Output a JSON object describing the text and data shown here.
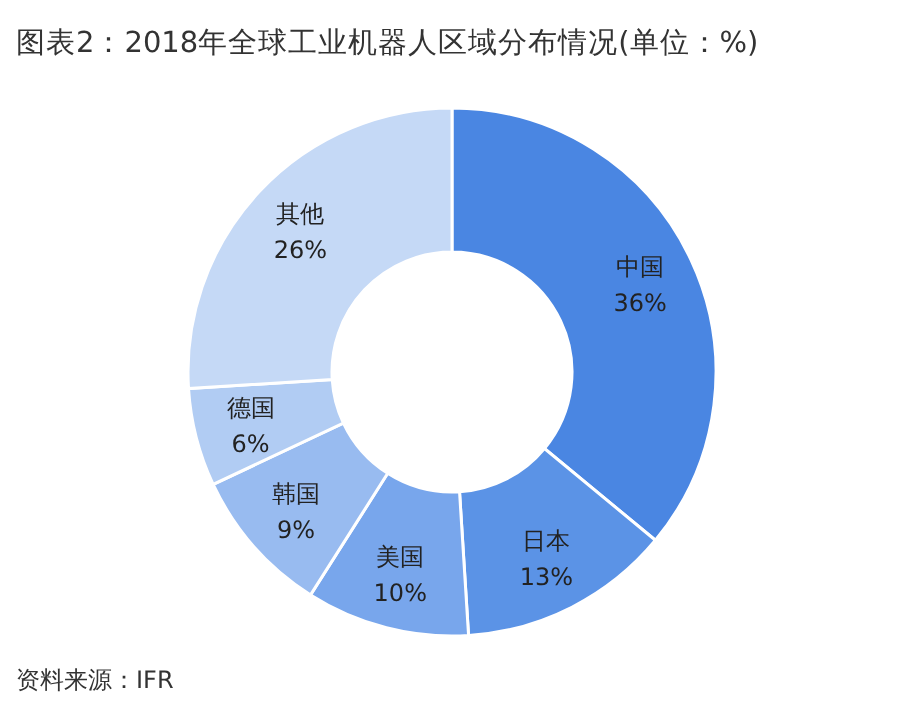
{
  "chart_data": {
    "type": "donut",
    "title": "图表2：2018年全球工业机器人区域分布情况(单位：%)",
    "categories": [
      "中国",
      "日本",
      "美国",
      "韩国",
      "德国",
      "其他"
    ],
    "values": [
      36,
      13,
      10,
      9,
      6,
      26
    ],
    "colors": [
      "#4a86e2",
      "#5b93e6",
      "#78a6ec",
      "#98bbf0",
      "#b1ccf3",
      "#c5d9f6"
    ],
    "value_labels": [
      "36%",
      "13%",
      "10%",
      "9%",
      "6%",
      "26%"
    ],
    "annotations": [
      "资料来源：IFR"
    ]
  }
}
